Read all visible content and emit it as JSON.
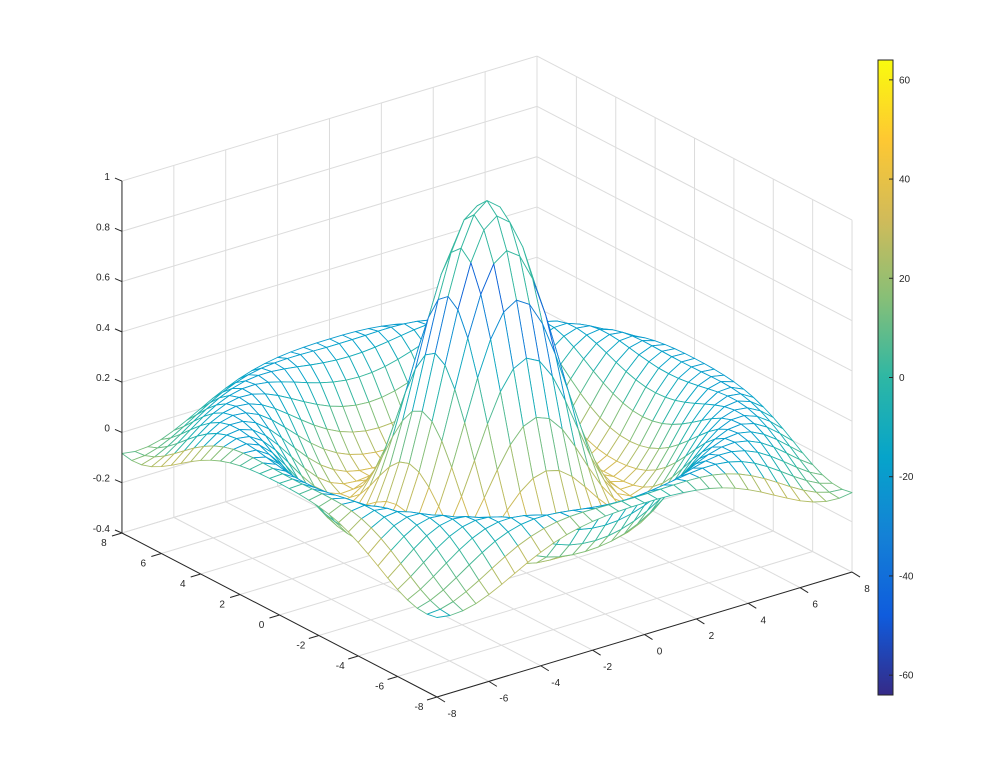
{
  "chart_data": {
    "type": "surface-mesh",
    "title": "",
    "function": "z = sin(r)/r, r = sqrt(x^2 + y^2)",
    "x": {
      "min": -8,
      "max": 8,
      "step": 0.5,
      "ticks": [
        -8,
        -6,
        -4,
        -2,
        0,
        2,
        4,
        6,
        8
      ],
      "label": ""
    },
    "y": {
      "min": -8,
      "max": 8,
      "step": 0.5,
      "ticks": [
        -8,
        -6,
        -4,
        -2,
        0,
        2,
        4,
        6,
        8
      ],
      "label": ""
    },
    "z": {
      "min": -0.4,
      "max": 1,
      "ticks": [
        -0.4,
        -0.2,
        0,
        0.2,
        0.4,
        0.6,
        0.8,
        1
      ],
      "label": ""
    },
    "colorbar": {
      "min": -64,
      "max": 64,
      "ticks": [
        -60,
        -40,
        -20,
        0,
        20,
        40,
        60
      ],
      "colormap": "parula"
    },
    "grid": true,
    "peak": {
      "x": 0,
      "y": 0,
      "z": 1
    }
  },
  "colors": {
    "axis": "#262626",
    "grid": "#dcdcdc",
    "parula": [
      "#352a87",
      "#0f5cdd",
      "#1481d6",
      "#06a4ca",
      "#2eb7a4",
      "#87bf77",
      "#d1bb59",
      "#fec832",
      "#f9fb0e"
    ]
  }
}
